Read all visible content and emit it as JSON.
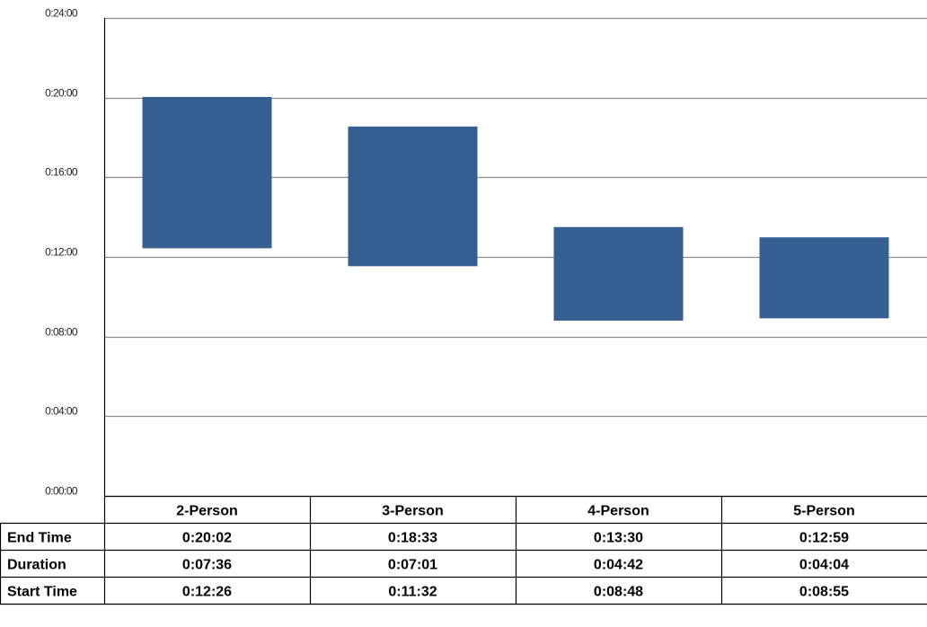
{
  "chart_data": {
    "type": "bar",
    "subtype": "floating-range",
    "categories": [
      "2-Person",
      "3-Person",
      "4-Person",
      "5-Person"
    ],
    "y_axis": {
      "min": "0:00:00",
      "max": "0:24:00",
      "ticks": [
        "0:00:00",
        "0:04:00",
        "0:08:00",
        "0:12:00",
        "0:16:00",
        "0:20:00",
        "0:24:00"
      ]
    },
    "grid": true,
    "bar_color": "#355f91",
    "series": [
      {
        "values": [
          "0:12:26",
          "0:11:32",
          "0:08:48",
          "0:08:55"
        ]
      },
      {
        "values": [
          "0:20:02",
          "0:18:33",
          "0:13:30",
          "0:12:59"
        ]
      }
    ],
    "table": {
      "rows": [
        {
          "label": "End Time",
          "values": [
            "0:20:02",
            "0:18:33",
            "0:13:30",
            "0:12:59"
          ]
        },
        {
          "label": "Duration",
          "values": [
            "0:07:36",
            "0:07:01",
            "0:04:42",
            "0:04:04"
          ]
        },
        {
          "label": "Start Time",
          "values": [
            "0:12:26",
            "0:11:32",
            "0:08:48",
            "0:08:55"
          ]
        }
      ]
    }
  }
}
